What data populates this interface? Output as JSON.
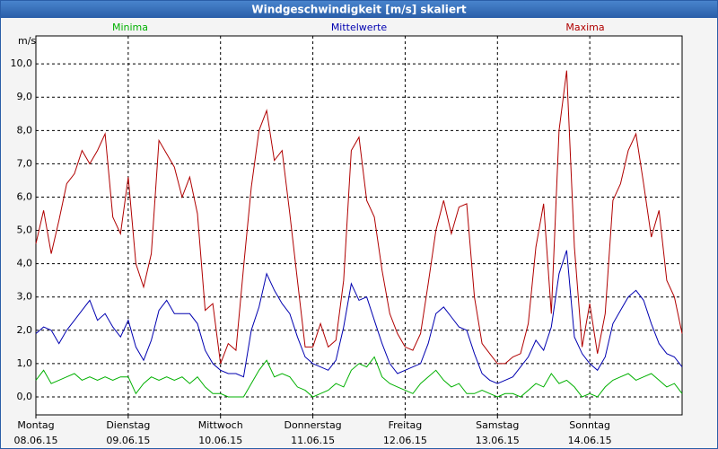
{
  "chart_data": {
    "type": "line",
    "title": "Windgeschwindigkeit [m/s] skaliert",
    "y_unit": "m/s",
    "x": [
      0,
      2,
      4,
      6,
      8,
      10,
      12,
      14,
      16,
      18,
      20,
      22,
      24,
      26,
      28,
      30,
      32,
      34,
      36,
      38,
      40,
      42,
      44,
      46,
      48,
      50,
      52,
      54,
      56,
      58,
      60,
      62,
      64,
      66,
      68,
      70,
      72,
      74,
      76,
      78,
      80,
      82,
      84,
      86,
      88,
      90,
      92,
      94,
      96,
      98,
      100,
      102,
      104,
      106,
      108,
      110,
      112,
      114,
      116,
      118,
      120,
      122,
      124,
      126,
      128,
      130,
      132,
      134,
      136,
      138,
      140,
      142,
      144,
      146,
      148,
      150,
      152,
      154,
      156,
      158,
      160,
      162,
      164,
      166,
      168
    ],
    "series": [
      {
        "name": "Minima",
        "color": "#00b000",
        "values": [
          0.5,
          0.8,
          0.4,
          0.5,
          0.6,
          0.7,
          0.5,
          0.6,
          0.5,
          0.6,
          0.5,
          0.6,
          0.6,
          0.1,
          0.4,
          0.6,
          0.5,
          0.6,
          0.5,
          0.6,
          0.4,
          0.6,
          0.3,
          0.1,
          0.1,
          0.0,
          0.0,
          0.0,
          0.4,
          0.8,
          1.1,
          0.6,
          0.7,
          0.6,
          0.3,
          0.2,
          0.0,
          0.1,
          0.2,
          0.4,
          0.3,
          0.8,
          1.0,
          0.9,
          1.2,
          0.6,
          0.4,
          0.3,
          0.2,
          0.1,
          0.4,
          0.6,
          0.8,
          0.5,
          0.3,
          0.4,
          0.1,
          0.1,
          0.2,
          0.1,
          0.0,
          0.1,
          0.1,
          0.0,
          0.2,
          0.4,
          0.3,
          0.7,
          0.4,
          0.5,
          0.3,
          0.0,
          0.1,
          0.0,
          0.3,
          0.5,
          0.6,
          0.7,
          0.5,
          0.6,
          0.7,
          0.5,
          0.3,
          0.4,
          0.1
        ]
      },
      {
        "name": "Mittelwerte",
        "color": "#0000b0",
        "values": [
          1.9,
          2.1,
          2.0,
          1.6,
          2.0,
          2.3,
          2.6,
          2.9,
          2.3,
          2.5,
          2.1,
          1.8,
          2.3,
          1.5,
          1.1,
          1.7,
          2.6,
          2.9,
          2.5,
          2.5,
          2.5,
          2.2,
          1.4,
          1.0,
          0.8,
          0.7,
          0.7,
          0.6,
          2.0,
          2.7,
          3.7,
          3.2,
          2.8,
          2.5,
          1.8,
          1.2,
          1.0,
          0.9,
          0.8,
          1.1,
          2.1,
          3.4,
          2.9,
          3.0,
          2.3,
          1.6,
          1.0,
          0.7,
          0.8,
          0.9,
          1.0,
          1.6,
          2.5,
          2.7,
          2.4,
          2.1,
          2.0,
          1.3,
          0.7,
          0.5,
          0.4,
          0.5,
          0.6,
          0.9,
          1.2,
          1.7,
          1.4,
          2.1,
          3.7,
          4.4,
          1.8,
          1.3,
          1.0,
          0.8,
          1.2,
          2.2,
          2.6,
          3.0,
          3.2,
          2.9,
          2.2,
          1.6,
          1.3,
          1.2,
          0.9
        ]
      },
      {
        "name": "Maxima",
        "color": "#b00000",
        "values": [
          4.6,
          5.6,
          4.3,
          5.3,
          6.4,
          6.7,
          7.4,
          7.0,
          7.4,
          7.9,
          5.4,
          4.9,
          6.6,
          4.0,
          3.3,
          4.3,
          7.7,
          7.3,
          6.9,
          6.0,
          6.6,
          5.5,
          2.6,
          2.8,
          1.0,
          1.6,
          1.4,
          3.9,
          6.3,
          8.0,
          8.6,
          7.1,
          7.4,
          5.5,
          3.5,
          1.5,
          1.5,
          2.2,
          1.5,
          1.7,
          3.5,
          7.4,
          7.8,
          5.9,
          5.4,
          3.8,
          2.5,
          1.9,
          1.5,
          1.4,
          1.9,
          3.4,
          5.0,
          5.9,
          4.9,
          5.7,
          5.8,
          3.0,
          1.6,
          1.3,
          1.0,
          1.0,
          1.2,
          1.3,
          2.2,
          4.5,
          5.8,
          2.5,
          8.0,
          9.8,
          4.5,
          1.5,
          2.8,
          1.3,
          2.5,
          5.9,
          6.4,
          7.4,
          7.9,
          6.4,
          4.8,
          5.6,
          3.5,
          3.0,
          1.9
        ]
      }
    ],
    "xlim": [
      0,
      168
    ],
    "xticks": [
      {
        "value": 0,
        "label": "Montag"
      },
      {
        "value": 24,
        "label": "Dienstag"
      },
      {
        "value": 48,
        "label": "Mittwoch"
      },
      {
        "value": 72,
        "label": "Donnerstag"
      },
      {
        "value": 96,
        "label": "Freitag"
      },
      {
        "value": 120,
        "label": "Samstag"
      },
      {
        "value": 144,
        "label": "Sonntag"
      }
    ],
    "xtick_dates": [
      "08.06.15",
      "09.06.15",
      "10.06.15",
      "11.06.15",
      "12.06.15",
      "13.06.15",
      "14.06.15"
    ],
    "ylim": [
      -0.54,
      10.84
    ],
    "yticks": [
      {
        "value": 0,
        "label": "0,0"
      },
      {
        "value": 1,
        "label": "1,0"
      },
      {
        "value": 2,
        "label": "2,0"
      },
      {
        "value": 3,
        "label": "3,0"
      },
      {
        "value": 4,
        "label": "4,0"
      },
      {
        "value": 5,
        "label": "5,0"
      },
      {
        "value": 6,
        "label": "6,0"
      },
      {
        "value": 7,
        "label": "7,0"
      },
      {
        "value": 8,
        "label": "8,0"
      },
      {
        "value": 9,
        "label": "9,0"
      },
      {
        "value": 10,
        "label": "10,0"
      }
    ],
    "grid": true
  }
}
